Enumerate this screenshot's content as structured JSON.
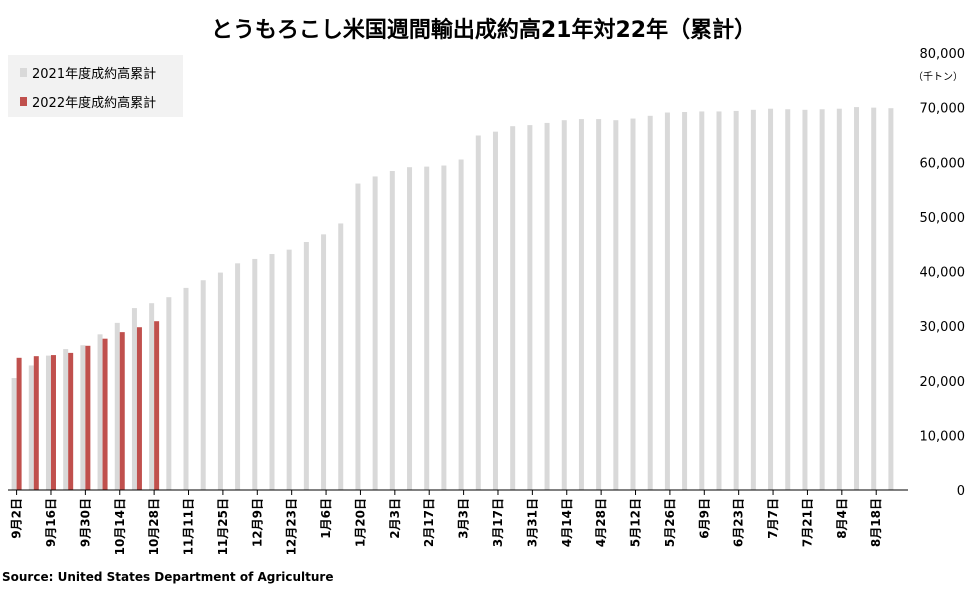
{
  "chart_data": {
    "type": "bar",
    "title": "とうもろこし米国週間輸出成約高21年対22年（累計）",
    "unit": "（千トン）",
    "ylim": [
      0,
      80000
    ],
    "yticks": [
      "0",
      "10,000",
      "20,000",
      "30,000",
      "40,000",
      "50,000",
      "60,000",
      "70,000",
      "80,000"
    ],
    "xtick_labels": [
      "9月2日",
      "9月16日",
      "9月30日",
      "10月14日",
      "10月28日",
      "11月11日",
      "11月25日",
      "12月9日",
      "12月23日",
      "1月6日",
      "1月20日",
      "2月3日",
      "2月17日",
      "3月3日",
      "3月17日",
      "3月31日",
      "4月14日",
      "4月28日",
      "5月12日",
      "5月26日",
      "6月9日",
      "6月23日",
      "7月7日",
      "7月21日",
      "8月4日",
      "8月18日"
    ],
    "legend_position": "top-left",
    "series": [
      {
        "name": "2021年度成約高累計",
        "color": "#d9d9d9",
        "values": [
          20500,
          22800,
          24600,
          25800,
          26500,
          28500,
          30600,
          33300,
          34200,
          35300,
          37000,
          38400,
          39800,
          41500,
          42300,
          43200,
          44000,
          45400,
          46800,
          48800,
          56100,
          57400,
          58400,
          59100,
          59200,
          59400,
          60500,
          64900,
          65600,
          66600,
          66800,
          67200,
          67700,
          67900,
          67900,
          67700,
          68000,
          68500,
          69100,
          69200,
          69300,
          69300,
          69400,
          69600,
          69800,
          69700,
          69600,
          69700,
          69800,
          70100,
          70000,
          69900
        ]
      },
      {
        "name": "2022年度成約高累計",
        "color": "#c0504d",
        "values": [
          24200,
          24500,
          24700,
          25100,
          26400,
          27700,
          28900,
          29800,
          30900
        ]
      }
    ]
  },
  "source": "Source: United States Department of Agriculture"
}
